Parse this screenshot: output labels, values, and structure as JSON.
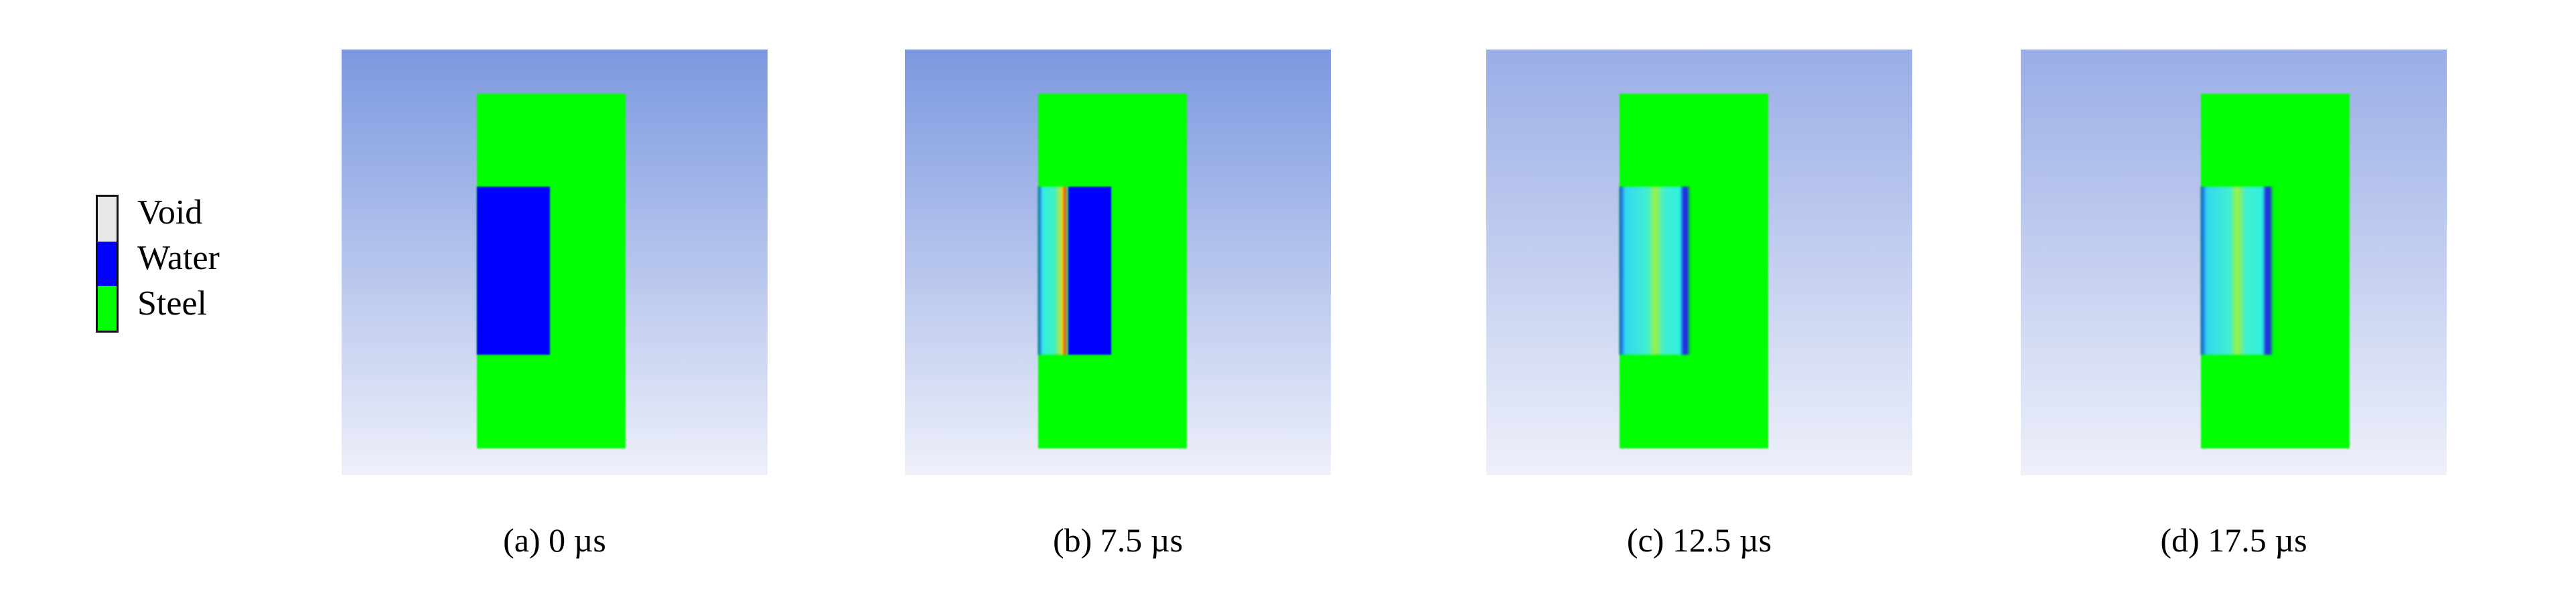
{
  "legend": {
    "items": [
      {
        "label": "Void",
        "color": "#e8e8e8"
      },
      {
        "label": "Water",
        "color": "#0000ff"
      },
      {
        "label": "Steel",
        "color": "#00ff00"
      }
    ]
  },
  "panels": [
    {
      "caption": "(a)  0 µs"
    },
    {
      "caption": "(b)  7.5 µs"
    },
    {
      "caption": "(c)  12.5 µs"
    },
    {
      "caption": "(d)  17.5 µs"
    }
  ]
}
